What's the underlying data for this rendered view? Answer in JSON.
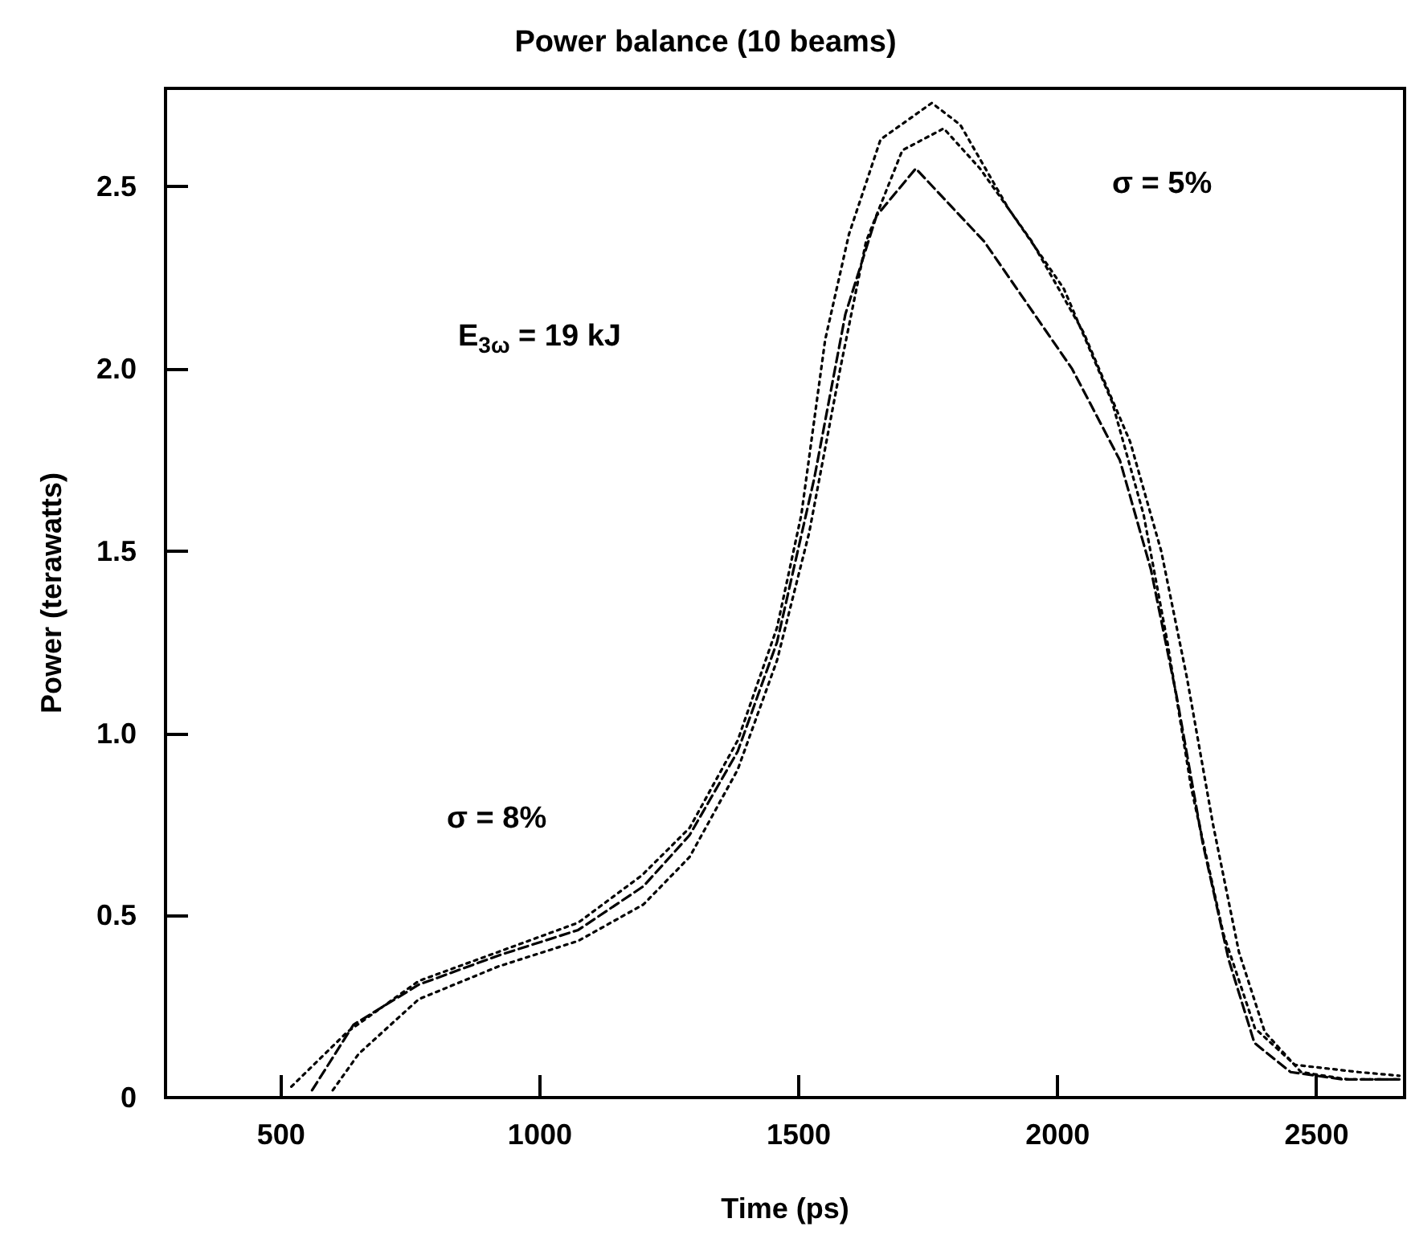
{
  "chart_data": {
    "type": "line",
    "title": "Power balance (10 beams)",
    "xlabel": "Time (ps)",
    "ylabel": "Power (terawatts)",
    "xlim": [
      277,
      2670
    ],
    "xticks": [
      500,
      1000,
      1500,
      2000,
      2500
    ],
    "ylim": [
      0,
      2.77
    ],
    "yticks": [
      0,
      0.5,
      {
        "value": 1,
        "label": "1.0"
      },
      1.5,
      {
        "value": 2,
        "label": "2.0"
      },
      2.5
    ],
    "grid": false,
    "marker": "none",
    "annotations": [
      "E$_{3ω}$ = 19 kJ",
      "σ = 8%",
      "σ = 5%"
    ],
    "series": [
      {
        "color": "#000000",
        "line_style": "dotted",
        "x": [
          520,
          628,
          766,
          920,
          1074,
          1197,
          1289,
          1382,
          1458,
          1505,
          1551,
          1597,
          1658,
          1757,
          1812,
          1905,
          2012,
          2105,
          2166,
          2212,
          2258,
          2320,
          2381,
          2458,
          2581,
          2660
        ],
        "values": [
          0.03,
          0.18,
          0.32,
          0.4,
          0.48,
          0.61,
          0.74,
          0.98,
          1.29,
          1.6,
          2.08,
          2.37,
          2.63,
          2.73,
          2.67,
          2.44,
          2.22,
          1.91,
          1.6,
          1.25,
          0.85,
          0.45,
          0.19,
          0.09,
          0.07,
          0.06
        ]
      },
      {
        "color": "#000000",
        "line_style": "dotted",
        "x": [
          600,
          650,
          766,
          920,
          1074,
          1200,
          1289,
          1382,
          1458,
          1520,
          1580,
          1630,
          1700,
          1780,
          1850,
          1950,
          2050,
          2140,
          2200,
          2250,
          2300,
          2350,
          2400,
          2470,
          2560,
          2660
        ],
        "values": [
          0.02,
          0.12,
          0.27,
          0.36,
          0.43,
          0.53,
          0.66,
          0.9,
          1.2,
          1.55,
          2,
          2.35,
          2.6,
          2.66,
          2.55,
          2.35,
          2.1,
          1.8,
          1.5,
          1.15,
          0.75,
          0.4,
          0.18,
          0.07,
          0.05,
          0.05
        ]
      },
      {
        "color": "#000000",
        "line_style": "dashed",
        "x": [
          560,
          640,
          766,
          920,
          1074,
          1200,
          1289,
          1382,
          1458,
          1530,
          1590,
          1650,
          1726,
          1858,
          2028,
          2120,
          2180,
          2230,
          2280,
          2330,
          2380,
          2450,
          2550,
          2660
        ],
        "values": [
          0.02,
          0.2,
          0.31,
          0.39,
          0.46,
          0.58,
          0.72,
          0.95,
          1.25,
          1.7,
          2.15,
          2.42,
          2.55,
          2.35,
          2,
          1.75,
          1.45,
          1.1,
          0.7,
          0.38,
          0.15,
          0.07,
          0.05,
          0.05
        ]
      }
    ]
  }
}
